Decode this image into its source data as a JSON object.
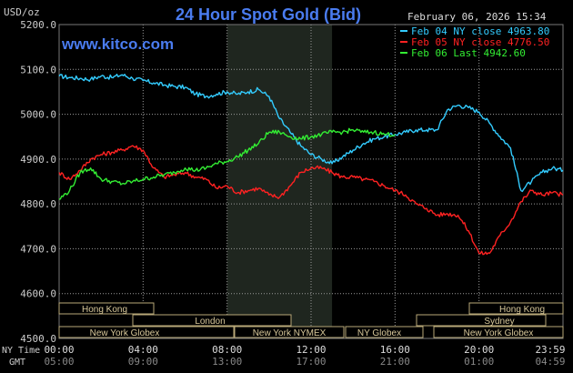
{
  "header": {
    "unit": "USD/oz",
    "title": "24 Hour Spot Gold (Bid)",
    "date": "February 06, 2026 15:34",
    "watermark": "www.kitco.com"
  },
  "legend": {
    "items": [
      {
        "text": "Feb 04 NY close 4963.80",
        "color": "#33ccff"
      },
      {
        "text": "Feb 05 NY close 4776.50",
        "color": "#ff2222"
      },
      {
        "text": "Feb 06 Last 4942.60",
        "color": "#33ee33"
      }
    ]
  },
  "colors": {
    "background": "#000000",
    "grid": "#9a9a9a",
    "axis_text": "#cccccc",
    "session_shade": "#1f261f",
    "market_box_fill": "#000000",
    "market_box_stroke": "#b8a878",
    "market_text": "#d8c89a",
    "title": "#4a7cf0",
    "watermark": "#4a7cf0"
  },
  "markets": {
    "hong_kong_1": "Hong Kong",
    "london": "London",
    "new_york_globex_1": "New York Globex",
    "new_york_nymex": "New York NYMEX",
    "ny_globex": "NY Globex",
    "hong_kong_2": "Hong Kong",
    "sydney": "Sydney",
    "new_york_globex_2": "New York Globex"
  },
  "time_rows": {
    "ny_label": "NY Time",
    "gmt_label": "GMT",
    "ny_ticks": [
      "00:00",
      "04:00",
      "08:00",
      "12:00",
      "16:00",
      "20:00",
      "23:59"
    ],
    "gmt_ticks": [
      "05:00",
      "09:00",
      "13:00",
      "17:00",
      "21:00",
      "01:00",
      "04:59"
    ]
  },
  "chart_data": {
    "type": "line",
    "xlabel": "",
    "ylabel": "USD/oz",
    "ylim": [
      4500,
      5200
    ],
    "y_ticks": [
      "5200.0",
      "5100.0",
      "5000.0",
      "4900.0",
      "4800.0",
      "4700.0",
      "4600.0",
      "4500.0"
    ],
    "x_hours": [
      0,
      4,
      8,
      12,
      16,
      20,
      24
    ],
    "shaded_hours": [
      8,
      13
    ],
    "grid": true,
    "series": [
      {
        "name": "Feb 04 NY close 4963.80",
        "color": "#33ccff",
        "points": [
          [
            0,
            5085
          ],
          [
            0.5,
            5082
          ],
          [
            1,
            5080
          ],
          [
            1.5,
            5078
          ],
          [
            2,
            5085
          ],
          [
            2.5,
            5082
          ],
          [
            3,
            5088
          ],
          [
            3.5,
            5080
          ],
          [
            4,
            5075
          ],
          [
            4.5,
            5070
          ],
          [
            5,
            5065
          ],
          [
            5.5,
            5062
          ],
          [
            6,
            5060
          ],
          [
            6.5,
            5045
          ],
          [
            7,
            5040
          ],
          [
            7.5,
            5045
          ],
          [
            8,
            5050
          ],
          [
            8.5,
            5045
          ],
          [
            9,
            5050
          ],
          [
            9.5,
            5055
          ],
          [
            10,
            5040
          ],
          [
            10.5,
            4990
          ],
          [
            11,
            4960
          ],
          [
            11.5,
            4930
          ],
          [
            12,
            4910
          ],
          [
            12.5,
            4900
          ],
          [
            13,
            4890
          ],
          [
            13.5,
            4905
          ],
          [
            14,
            4920
          ],
          [
            14.5,
            4935
          ],
          [
            15,
            4945
          ],
          [
            15.5,
            4950
          ],
          [
            16,
            4955
          ],
          [
            16.5,
            4960
          ],
          [
            17,
            4965
          ],
          [
            17.5,
            4965
          ],
          [
            18,
            4965
          ],
          [
            18.5,
            5010
          ],
          [
            19,
            5020
          ],
          [
            19.5,
            5015
          ],
          [
            20,
            5005
          ],
          [
            20.5,
            4980
          ],
          [
            21,
            4950
          ],
          [
            21.5,
            4925
          ],
          [
            22,
            4830
          ],
          [
            22.5,
            4850
          ],
          [
            23,
            4870
          ],
          [
            23.5,
            4880
          ],
          [
            24,
            4875
          ]
        ]
      },
      {
        "name": "Feb 05 NY close 4776.50",
        "color": "#ff2222",
        "points": [
          [
            0,
            4870
          ],
          [
            0.5,
            4855
          ],
          [
            1,
            4875
          ],
          [
            1.5,
            4900
          ],
          [
            2,
            4910
          ],
          [
            2.5,
            4915
          ],
          [
            3,
            4920
          ],
          [
            3.5,
            4930
          ],
          [
            4,
            4920
          ],
          [
            4.5,
            4880
          ],
          [
            5,
            4860
          ],
          [
            5.5,
            4865
          ],
          [
            6,
            4870
          ],
          [
            6.5,
            4860
          ],
          [
            7,
            4855
          ],
          [
            7.5,
            4835
          ],
          [
            8,
            4840
          ],
          [
            8.5,
            4825
          ],
          [
            9,
            4830
          ],
          [
            9.5,
            4835
          ],
          [
            10,
            4820
          ],
          [
            10.5,
            4815
          ],
          [
            11,
            4840
          ],
          [
            11.5,
            4870
          ],
          [
            12,
            4880
          ],
          [
            12.5,
            4880
          ],
          [
            13,
            4870
          ],
          [
            13.5,
            4860
          ],
          [
            14,
            4860
          ],
          [
            14.5,
            4855
          ],
          [
            15,
            4850
          ],
          [
            15.5,
            4840
          ],
          [
            16,
            4830
          ],
          [
            16.5,
            4820
          ],
          [
            17,
            4800
          ],
          [
            17.5,
            4790
          ],
          [
            18,
            4775
          ],
          [
            18.5,
            4778
          ],
          [
            19,
            4775
          ],
          [
            19.5,
            4740
          ],
          [
            20,
            4690
          ],
          [
            20.5,
            4690
          ],
          [
            21,
            4730
          ],
          [
            21.5,
            4760
          ],
          [
            22,
            4805
          ],
          [
            22.5,
            4830
          ],
          [
            23,
            4820
          ],
          [
            23.5,
            4825
          ],
          [
            24,
            4820
          ]
        ]
      },
      {
        "name": "Feb 06 Last 4942.60",
        "color": "#33ee33",
        "points": [
          [
            0,
            4810
          ],
          [
            0.5,
            4830
          ],
          [
            1,
            4870
          ],
          [
            1.5,
            4880
          ],
          [
            2,
            4855
          ],
          [
            2.5,
            4850
          ],
          [
            3,
            4845
          ],
          [
            3.5,
            4850
          ],
          [
            4,
            4855
          ],
          [
            4.5,
            4860
          ],
          [
            5,
            4865
          ],
          [
            5.5,
            4870
          ],
          [
            6,
            4880
          ],
          [
            6.5,
            4875
          ],
          [
            7,
            4880
          ],
          [
            7.5,
            4890
          ],
          [
            8,
            4895
          ],
          [
            8.5,
            4905
          ],
          [
            9,
            4920
          ],
          [
            9.5,
            4935
          ],
          [
            10,
            4960
          ],
          [
            10.5,
            4960
          ],
          [
            11,
            4950
          ],
          [
            11.5,
            4945
          ],
          [
            12,
            4950
          ],
          [
            12.5,
            4955
          ],
          [
            13,
            4960
          ],
          [
            13.5,
            4960
          ],
          [
            14,
            4965
          ],
          [
            14.5,
            4960
          ],
          [
            15,
            4960
          ],
          [
            15.5,
            4955
          ],
          [
            16,
            4955
          ]
        ]
      }
    ]
  }
}
